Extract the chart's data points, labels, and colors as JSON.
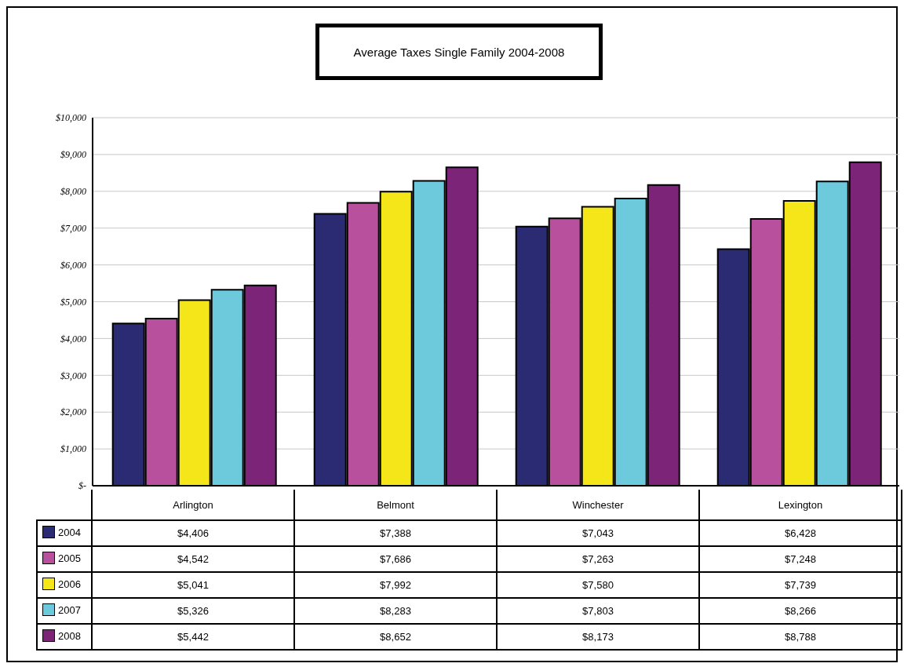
{
  "chart_data": {
    "type": "bar",
    "title": "Average Taxes Single Family 2004-2008",
    "categories": [
      "Arlington",
      "Belmont",
      "Winchester",
      "Lexington"
    ],
    "series": [
      {
        "name": "2004",
        "color": "#2b2b73",
        "values": [
          4406,
          7388,
          7043,
          6428
        ],
        "value_labels": [
          "$4,406",
          "$7,388",
          "$7,043",
          "$6,428"
        ]
      },
      {
        "name": "2005",
        "color": "#b9509e",
        "values": [
          4542,
          7686,
          7263,
          7248
        ],
        "value_labels": [
          "$4,542",
          "$7,686",
          "$7,263",
          "$7,248"
        ]
      },
      {
        "name": "2006",
        "color": "#f5e61a",
        "values": [
          5041,
          7992,
          7580,
          7739
        ],
        "value_labels": [
          "$5,041",
          "$7,992",
          "$7,580",
          "$7,739"
        ]
      },
      {
        "name": "2007",
        "color": "#6ccadc",
        "values": [
          5326,
          8283,
          7803,
          8266
        ],
        "value_labels": [
          "$5,326",
          "$8,283",
          "$7,803",
          "$8,266"
        ]
      },
      {
        "name": "2008",
        "color": "#7b2478",
        "values": [
          5442,
          8652,
          8173,
          8788
        ],
        "value_labels": [
          "$5,442",
          "$8,652",
          "$8,173",
          "$8,788"
        ]
      }
    ],
    "ylim": [
      0,
      10000
    ],
    "yticks": [
      {
        "value": 0,
        "label": "$-"
      },
      {
        "value": 1000,
        "label": "$1,000"
      },
      {
        "value": 2000,
        "label": "$2,000"
      },
      {
        "value": 3000,
        "label": "$3,000"
      },
      {
        "value": 4000,
        "label": "$4,000"
      },
      {
        "value": 5000,
        "label": "$5,000"
      },
      {
        "value": 6000,
        "label": "$6,000"
      },
      {
        "value": 7000,
        "label": "$7,000"
      },
      {
        "value": 8000,
        "label": "$8,000"
      },
      {
        "value": 9000,
        "label": "$9,000"
      },
      {
        "value": 10000,
        "label": "$10,000"
      }
    ],
    "grid": "y",
    "legend": "bottom"
  }
}
